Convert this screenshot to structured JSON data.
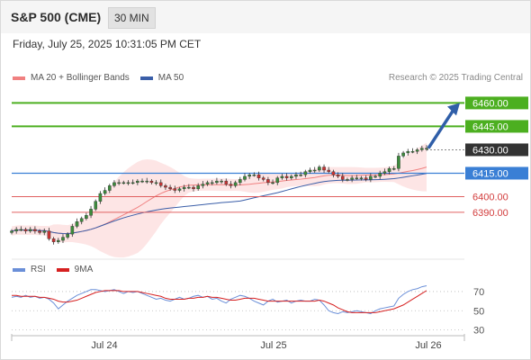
{
  "header": {
    "title": "S&P 500 (CME)",
    "interval": "30 MIN"
  },
  "datetime": "Friday, July 25, 2025 10:31:05 PM CET",
  "legend": {
    "ma_label": "MA 20 + Bollinger Bands",
    "ma50_label": "MA 50",
    "credit": "Research © 2025 Trading Central"
  },
  "rsi_legend": {
    "rsi_label": "RSI",
    "ma_label": "9MA"
  },
  "colors": {
    "ma20": "#f08080",
    "ma50": "#3a5ea8",
    "band": "#fde0e0",
    "up": "#3c8c3c",
    "down": "#c83232",
    "green_level": "#4caf20",
    "blue_level": "#3a7fd5",
    "red_level": "#e06060",
    "arrow": "#2f5ea8",
    "rsi": "#6a8fd8",
    "rsi_ma": "#d62020"
  },
  "chart_data": [
    {
      "type": "candlestick",
      "x_ticks": [
        "Jul 24",
        "Jul 25",
        "Jul 26"
      ],
      "ylim": [
        6368,
        6466
      ],
      "levels": [
        {
          "value": 6460,
          "label": "6460.00",
          "kind": "resistance"
        },
        {
          "value": 6445,
          "label": "6445.00",
          "kind": "resistance"
        },
        {
          "value": 6430,
          "label": "6430.00",
          "kind": "last"
        },
        {
          "value": 6415,
          "label": "6415.00",
          "kind": "pivot"
        },
        {
          "value": 6400,
          "label": "6400.00",
          "kind": "support"
        },
        {
          "value": 6390,
          "label": "6390.00",
          "kind": "support"
        }
      ],
      "close": [
        6378,
        6379,
        6379,
        6378,
        6379,
        6378,
        6377,
        6378,
        6373,
        6371,
        6372,
        6374,
        6376,
        6381,
        6384,
        6386,
        6388,
        6392,
        6397,
        6402,
        6404,
        6407,
        6409,
        6409,
        6409,
        6409,
        6409,
        6410,
        6410,
        6410,
        6409,
        6409,
        6407,
        6406,
        6405,
        6404,
        6405,
        6406,
        6406,
        6405,
        6407,
        6408,
        6409,
        6409,
        6410,
        6410,
        6408,
        6407,
        6409,
        6411,
        6413,
        6414,
        6414,
        6412,
        6411,
        6409,
        6409,
        6412,
        6413,
        6412,
        6413,
        6414,
        6414,
        6416,
        6417,
        6417,
        6419,
        6417,
        6416,
        6414,
        6413,
        6411,
        6411,
        6412,
        6412,
        6412,
        6411,
        6413,
        6413,
        6415,
        6416,
        6418,
        6418,
        6426,
        6428,
        6429,
        6429,
        6430,
        6431,
        6431
      ]
    },
    {
      "type": "line",
      "title": "RSI",
      "y_ticks": [
        70,
        50,
        30
      ],
      "ylim": [
        24,
        84
      ],
      "series": [
        {
          "name": "RSI",
          "values": [
            64,
            65,
            64,
            66,
            64,
            65,
            63,
            64,
            62,
            58,
            52,
            56,
            60,
            63,
            66,
            68,
            70,
            72,
            72,
            71,
            70,
            71,
            72,
            70,
            68,
            70,
            69,
            70,
            68,
            66,
            64,
            62,
            63,
            61,
            60,
            62,
            64,
            62,
            63,
            65,
            66,
            64,
            65,
            62,
            63,
            60,
            58,
            62,
            64,
            66,
            65,
            63,
            60,
            58,
            56,
            60,
            62,
            59,
            60,
            61,
            58,
            60,
            61,
            60,
            60,
            62,
            61,
            56,
            50,
            48,
            47,
            49,
            48,
            49,
            50,
            49,
            48,
            47,
            50,
            52,
            53,
            54,
            55,
            63,
            67,
            70,
            72,
            73,
            75,
            76
          ]
        },
        {
          "name": "9MA",
          "values": [
            66,
            66,
            65,
            65,
            65,
            65,
            64,
            64,
            63,
            62,
            60,
            59,
            59,
            60,
            61,
            63,
            65,
            67,
            69,
            70,
            71,
            71,
            71,
            71,
            70,
            70,
            70,
            70,
            69,
            68,
            67,
            66,
            65,
            63,
            62,
            62,
            62,
            62,
            63,
            63,
            64,
            64,
            65,
            64,
            64,
            63,
            62,
            61,
            61,
            62,
            63,
            63,
            63,
            62,
            61,
            60,
            60,
            60,
            60,
            60,
            60,
            60,
            60,
            60,
            60,
            60,
            61,
            60,
            58,
            56,
            53,
            51,
            49,
            48,
            48,
            48,
            48,
            48,
            48,
            49,
            50,
            51,
            52,
            54,
            56,
            59,
            62,
            65,
            68,
            71
          ]
        }
      ]
    }
  ]
}
